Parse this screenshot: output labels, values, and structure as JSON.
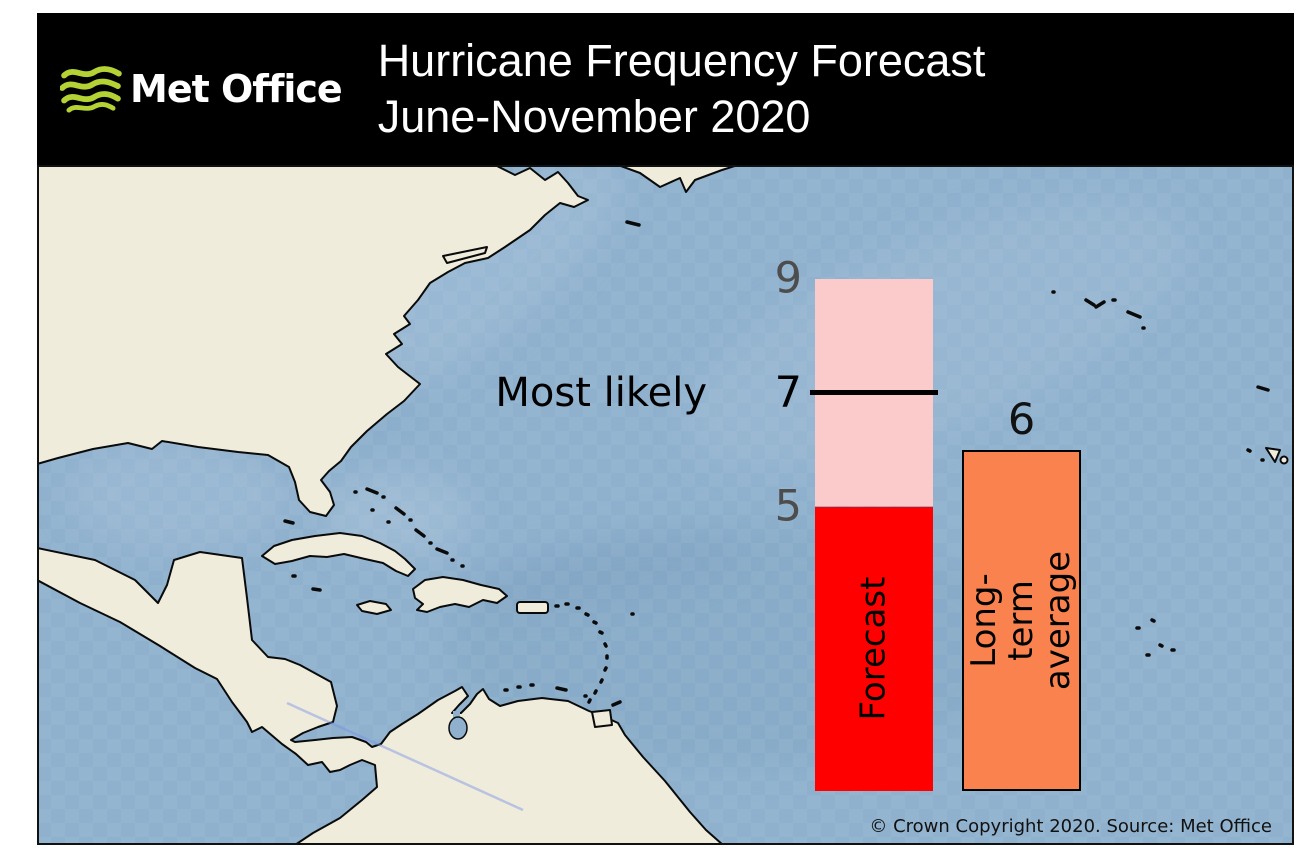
{
  "header": {
    "brand": "Met Office",
    "logo_icon": "met-office-waves",
    "logo_color": "#b4d233",
    "background": "#000000",
    "text_color": "#ffffff",
    "title_line1": "Hurricane Frequency Forecast",
    "title_line2": "June-November 2020"
  },
  "chart_data": {
    "type": "bar",
    "title": "Hurricane Frequency Forecast",
    "subtitle": "June-November 2020",
    "annotation": "Most likely",
    "ylim": [
      0,
      9
    ],
    "tick_values": [
      9,
      7,
      5
    ],
    "tick_labels": [
      "9",
      "7",
      "5"
    ],
    "tick_colors": [
      "#4d4d4d",
      "#000000",
      "#4d4d4d"
    ],
    "most_likely_line_color": "#000000",
    "series": [
      {
        "name": "Forecast",
        "most_likely": 7,
        "range_low": 5,
        "range_high": 9,
        "solid_color": "#ff0000",
        "range_color": "#fbcbcc"
      },
      {
        "name": "Long-term average",
        "value": 6,
        "color": "#f9824e"
      }
    ],
    "legend_position": "in-bar-rotated",
    "grid": false
  },
  "map": {
    "ocean_color": "#8fb1ce",
    "land_color": "#efecdc",
    "coast_color": "#0a0a0a",
    "depicts": "North Atlantic hurricane basin: North America east coast, Gulf of Mexico, Caribbean islands, Central America, northern South America, Bermuda, Azores, Madeira, Canary Islands, Cape Verde"
  },
  "footer": {
    "copyright": "© Crown Copyright 2020. Source: Met Office"
  }
}
